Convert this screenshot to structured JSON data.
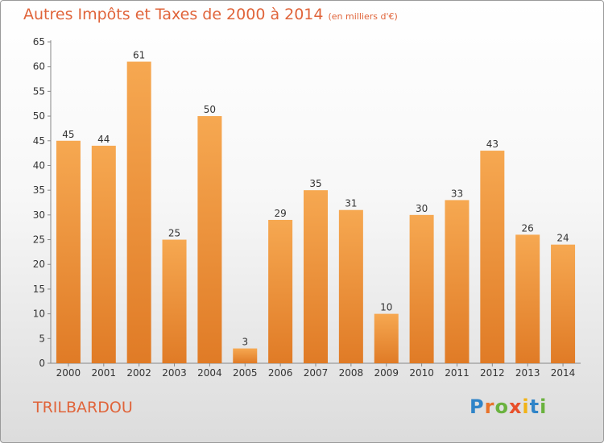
{
  "title": "Autres Impôts et Taxes de 2000 à 2014",
  "unit": "(en milliers d'€)",
  "commune": "TRILBARDOU",
  "logo": {
    "letters": [
      {
        "ch": "P",
        "color": "#2f84c8"
      },
      {
        "ch": "r",
        "color": "#e8732a"
      },
      {
        "ch": "o",
        "color": "#6ab23e"
      },
      {
        "ch": "x",
        "color": "#e84f2a"
      },
      {
        "ch": "i",
        "color": "#f2b316"
      },
      {
        "ch": "t",
        "color": "#2f84c8"
      },
      {
        "ch": "i",
        "color": "#6ab23e"
      }
    ]
  },
  "chart_data": {
    "type": "bar",
    "categories": [
      "2000",
      "2001",
      "2002",
      "2003",
      "2004",
      "2005",
      "2006",
      "2007",
      "2008",
      "2009",
      "2010",
      "2011",
      "2012",
      "2013",
      "2014"
    ],
    "values": [
      45,
      44,
      61,
      25,
      50,
      3,
      29,
      35,
      31,
      10,
      30,
      33,
      43,
      26,
      24
    ],
    "ylim": [
      0,
      65
    ],
    "yticks": [
      0,
      5,
      10,
      15,
      20,
      25,
      30,
      35,
      40,
      45,
      50,
      55,
      60,
      65
    ],
    "grid": false,
    "bar_color_light": "#f6a851",
    "bar_color_dark": "#e07b26"
  }
}
